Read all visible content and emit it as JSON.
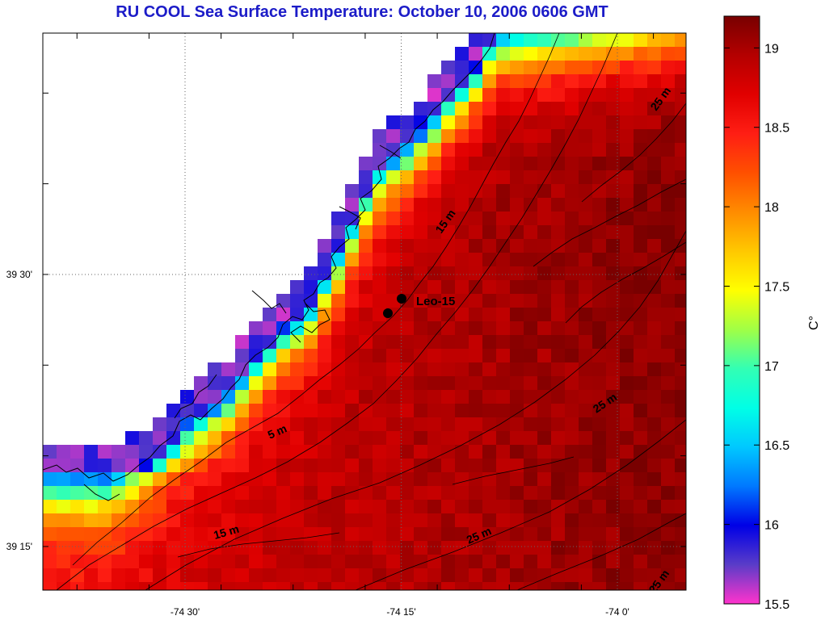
{
  "title": "RU COOL  Sea Surface Temperature:  October 10, 2006 0606 GMT",
  "axes": {
    "x_ticks": [
      {
        "label": "-74 30'",
        "lon": -74.5
      },
      {
        "label": "-74 15'",
        "lon": -74.25
      },
      {
        "label": "-74 0'",
        "lon": -74.0
      }
    ],
    "y_ticks": [
      {
        "label": "39 30'",
        "lat": 39.5
      },
      {
        "label": "39 15'",
        "lat": 39.25
      }
    ]
  },
  "station": {
    "label": "Leo-15"
  },
  "depth_contours": [
    {
      "label": "5 m"
    },
    {
      "label": "15 m"
    },
    {
      "label": "15 m"
    },
    {
      "label": "25 m"
    },
    {
      "label": "25 m"
    },
    {
      "label": "25 m"
    },
    {
      "label": "25 m"
    }
  ],
  "colorbar": {
    "unit": "C°",
    "min": 15.5,
    "max": 19.2,
    "ticks": [
      "19",
      "18.5",
      "18",
      "17.5",
      "17",
      "16.5",
      "16",
      "15.5"
    ]
  },
  "colors": {
    "title": "#1c1cc8",
    "ramp": [
      "#ff33cc",
      "#5a3cc8",
      "#0000e6",
      "#0078ff",
      "#00c8ff",
      "#00ffe6",
      "#32ffb4",
      "#a0ff46",
      "#ffff00",
      "#ffc800",
      "#ff8c00",
      "#ff5000",
      "#ff1e14",
      "#e10000",
      "#b40000",
      "#780000"
    ]
  }
}
